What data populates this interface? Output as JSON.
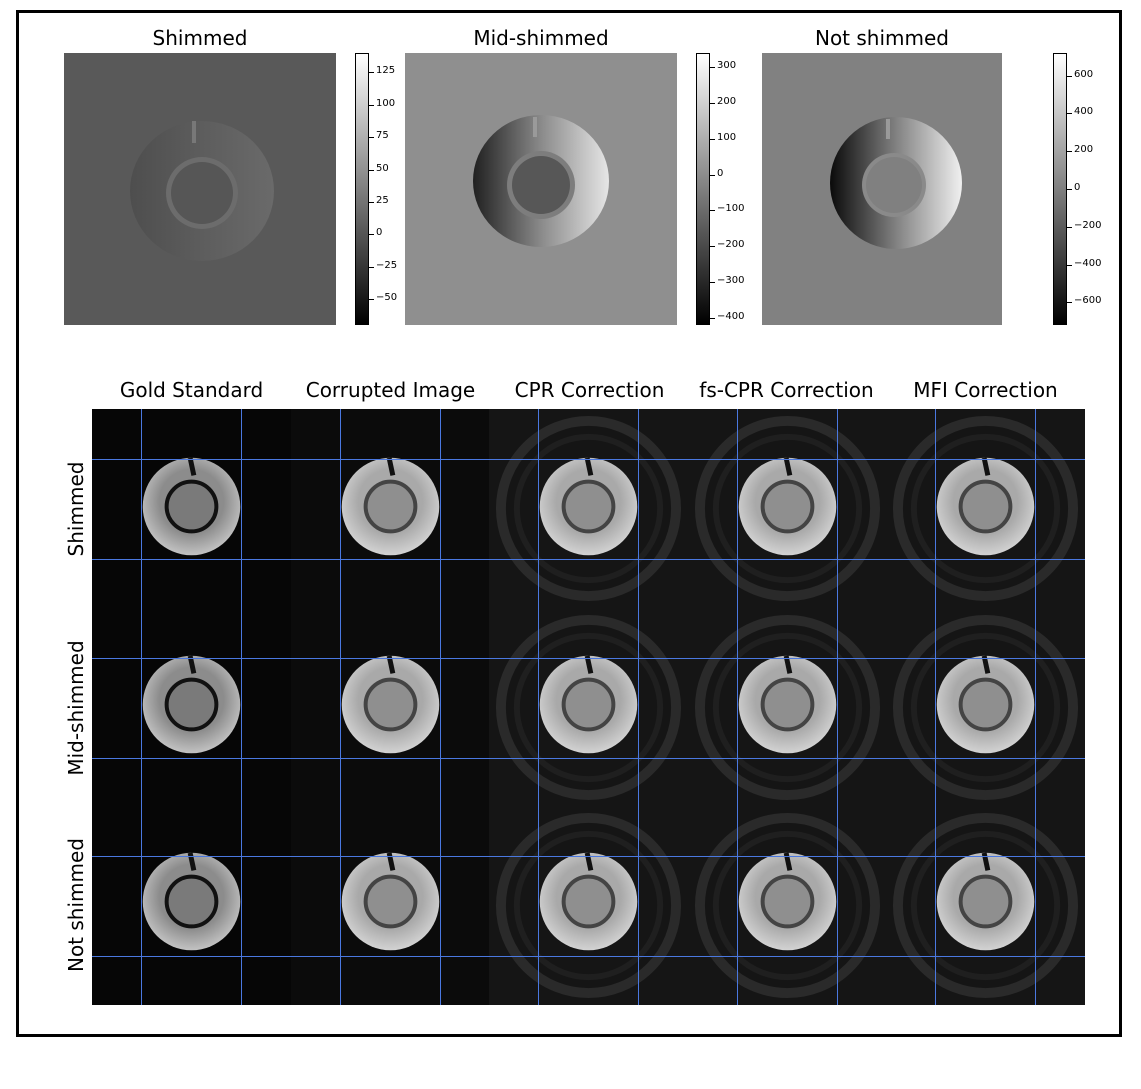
{
  "figure": {
    "top_titles": [
      "Shimmed",
      "Mid-shimmed",
      "Not shimmed"
    ],
    "colorbars": [
      {
        "ticks": [
          "125",
          "100",
          "75",
          "50",
          "25",
          "0",
          "−25",
          "−50"
        ],
        "values": [
          125,
          100,
          75,
          50,
          25,
          0,
          -25,
          -50
        ],
        "vmin": -70,
        "vmax": 140
      },
      {
        "ticks": [
          "300",
          "200",
          "100",
          "0",
          "−100",
          "−200",
          "−300",
          "−400"
        ],
        "values": [
          300,
          200,
          100,
          0,
          -100,
          -200,
          -300,
          -400
        ],
        "vmin": -420,
        "vmax": 340
      },
      {
        "ticks": [
          "600",
          "400",
          "200",
          "0",
          "−200",
          "−400",
          "−600"
        ],
        "values": [
          600,
          400,
          200,
          0,
          -200,
          -400,
          -600
        ],
        "vmin": -720,
        "vmax": 720
      }
    ],
    "column_headers": [
      "Gold Standard",
      "Corrupted Image",
      "CPR Correction",
      "fs-CPR Correction",
      "MFI Correction"
    ],
    "row_headers": [
      "Shimmed",
      "Mid-shimmed",
      "Not shimmed"
    ],
    "colors": {
      "grid_lines": "#4a78e0",
      "frame": "#000000"
    }
  }
}
